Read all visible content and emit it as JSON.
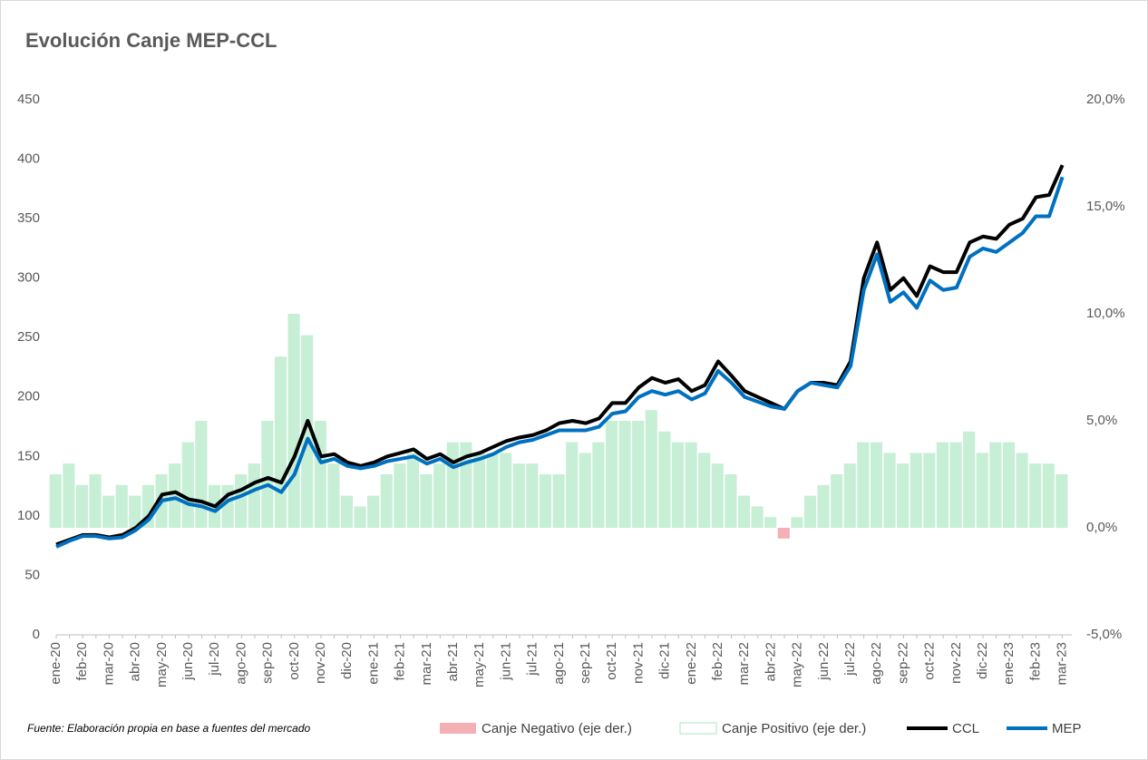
{
  "chart_data": {
    "type": "line",
    "title": "Evolución Canje MEP-CCL",
    "note": "Fuente: Elaboración propia en base a fuentes del mercado",
    "categories": [
      "ene-20",
      null,
      "feb-20",
      null,
      "mar-20",
      null,
      "abr-20",
      null,
      "may-20",
      null,
      "jun-20",
      null,
      "jul-20",
      null,
      "ago-20",
      null,
      "sep-20",
      null,
      "oct-20",
      null,
      "nov-20",
      null,
      "dic-20",
      null,
      "ene-21",
      null,
      "feb-21",
      null,
      "mar-21",
      null,
      "abr-21",
      null,
      "may-21",
      null,
      "jun-21",
      null,
      "jul-21",
      null,
      "ago-21",
      null,
      "sep-21",
      null,
      "oct-21",
      null,
      "nov-21",
      null,
      "dic-21",
      null,
      "ene-22",
      null,
      "feb-22",
      null,
      "mar-22",
      null,
      "abr-22",
      null,
      "may-22",
      null,
      "jun-22",
      null,
      "jul-22",
      null,
      "ago-22",
      null,
      "sep-22",
      null,
      "oct-22",
      null,
      "nov-22",
      null,
      "dic-22",
      null,
      "ene-23",
      null,
      "feb-23",
      null,
      "mar-23"
    ],
    "series": [
      {
        "name": "Canje Negativo (eje der.)",
        "color": "#f4b0b4",
        "axis": "y2",
        "kind": "bar",
        "values": [
          null,
          null,
          null,
          null,
          null,
          null,
          null,
          null,
          null,
          null,
          null,
          null,
          null,
          null,
          null,
          null,
          null,
          null,
          null,
          null,
          null,
          null,
          null,
          null,
          null,
          null,
          null,
          null,
          null,
          null,
          null,
          null,
          null,
          null,
          null,
          null,
          null,
          null,
          null,
          null,
          null,
          null,
          null,
          null,
          null,
          null,
          null,
          null,
          null,
          null,
          null,
          null,
          null,
          null,
          null,
          -0.5,
          null,
          null,
          null,
          null,
          null,
          null,
          null,
          null,
          null,
          null,
          null,
          null,
          null,
          null,
          null,
          null,
          null,
          null,
          null,
          null,
          null
        ]
      },
      {
        "name": "Canje Positivo  (eje der.)",
        "color": "#c6efd6",
        "axis": "y2",
        "kind": "bar",
        "values": [
          2.5,
          3,
          2,
          2.5,
          1.5,
          2,
          1.5,
          2,
          2.5,
          3,
          4,
          5,
          2,
          2,
          2.5,
          3,
          5,
          8,
          10,
          9,
          5,
          3,
          1.5,
          1,
          1.5,
          2.5,
          3,
          3.5,
          2.5,
          3,
          4,
          4,
          3.5,
          3.5,
          3.5,
          3,
          3,
          2.5,
          2.5,
          4,
          3.5,
          4,
          5,
          5,
          5,
          5.5,
          4.5,
          4,
          4,
          3.5,
          3,
          2.5,
          1.5,
          1,
          0.5,
          null,
          0.5,
          1.5,
          2,
          2.5,
          3,
          4,
          4,
          3.5,
          3,
          3.5,
          3.5,
          4,
          4,
          4.5,
          3.5,
          4,
          4,
          3.5,
          3,
          3,
          2.5
        ]
      },
      {
        "name": "CCL",
        "color": "#000000",
        "kind": "line",
        "values": [
          76,
          80,
          84,
          84,
          82,
          84,
          90,
          100,
          118,
          120,
          114,
          112,
          108,
          118,
          122,
          128,
          132,
          128,
          150,
          180,
          150,
          152,
          145,
          142,
          145,
          150,
          153,
          156,
          148,
          152,
          145,
          150,
          153,
          158,
          163,
          166,
          168,
          172,
          178,
          180,
          178,
          182,
          195,
          195,
          208,
          216,
          212,
          215,
          205,
          210,
          230,
          218,
          205,
          200,
          195,
          190,
          205,
          212,
          212,
          210,
          230,
          300,
          330,
          290,
          300,
          285,
          310,
          305,
          305,
          330,
          335,
          333,
          345,
          350,
          368,
          370,
          395
        ]
      },
      {
        "name": "MEP",
        "color": "#0070c0",
        "kind": "line",
        "values": [
          74,
          79,
          83,
          83,
          81,
          82,
          88,
          97,
          113,
          115,
          110,
          108,
          104,
          113,
          117,
          122,
          126,
          120,
          135,
          165,
          145,
          148,
          142,
          140,
          142,
          146,
          148,
          150,
          144,
          148,
          141,
          145,
          148,
          152,
          158,
          162,
          164,
          168,
          172,
          172,
          172,
          175,
          186,
          188,
          200,
          205,
          202,
          205,
          198,
          203,
          222,
          212,
          200,
          196,
          192,
          190,
          205,
          212,
          210,
          208,
          226,
          290,
          320,
          280,
          288,
          275,
          298,
          290,
          292,
          318,
          325,
          322,
          330,
          338,
          352,
          352,
          385
        ]
      }
    ],
    "ylim": [
      0,
      450
    ],
    "yticks": [
      0,
      50,
      100,
      150,
      200,
      250,
      300,
      350,
      400,
      450
    ],
    "y2lim": [
      -5,
      20
    ],
    "y2ticks": [
      {
        "value": -5,
        "label": "-5,0%"
      },
      {
        "value": 0,
        "label": "0,0%"
      },
      {
        "value": 5,
        "label": "5,0%"
      },
      {
        "value": 10,
        "label": "10,0%"
      },
      {
        "value": 15,
        "label": "15,0%"
      },
      {
        "value": 20,
        "label": "20,0%"
      }
    ],
    "grid": false,
    "legend": "bottom"
  }
}
